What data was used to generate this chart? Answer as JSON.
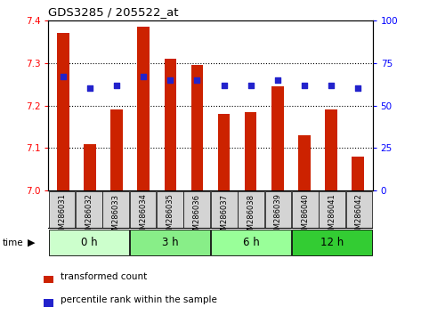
{
  "title": "GDS3285 / 205522_at",
  "samples": [
    "GSM286031",
    "GSM286032",
    "GSM286033",
    "GSM286034",
    "GSM286035",
    "GSM286036",
    "GSM286037",
    "GSM286038",
    "GSM286039",
    "GSM286040",
    "GSM286041",
    "GSM286042"
  ],
  "bar_values": [
    7.37,
    7.11,
    7.19,
    7.385,
    7.31,
    7.295,
    7.18,
    7.185,
    7.245,
    7.13,
    7.19,
    7.08
  ],
  "percentile_values": [
    67,
    60,
    62,
    67,
    65,
    65,
    62,
    62,
    65,
    62,
    62,
    60
  ],
  "bar_color": "#cc2200",
  "percentile_color": "#2222cc",
  "ylim_left": [
    7.0,
    7.4
  ],
  "ylim_right": [
    0,
    100
  ],
  "yticks_left": [
    7.0,
    7.1,
    7.2,
    7.3,
    7.4
  ],
  "yticks_right": [
    0,
    25,
    50,
    75,
    100
  ],
  "time_groups": [
    {
      "label": "0 h",
      "start": 0,
      "end": 3,
      "color": "#ccffcc"
    },
    {
      "label": "3 h",
      "start": 3,
      "end": 6,
      "color": "#88ee88"
    },
    {
      "label": "6 h",
      "start": 6,
      "end": 9,
      "color": "#99ff99"
    },
    {
      "label": "12 h",
      "start": 9,
      "end": 12,
      "color": "#33cc33"
    }
  ],
  "legend_bar_label": "transformed count",
  "legend_pct_label": "percentile rank within the sample",
  "background_color": "#ffffff",
  "bar_base": 7.0,
  "bar_width": 0.45,
  "xlim": [
    -0.55,
    11.55
  ]
}
